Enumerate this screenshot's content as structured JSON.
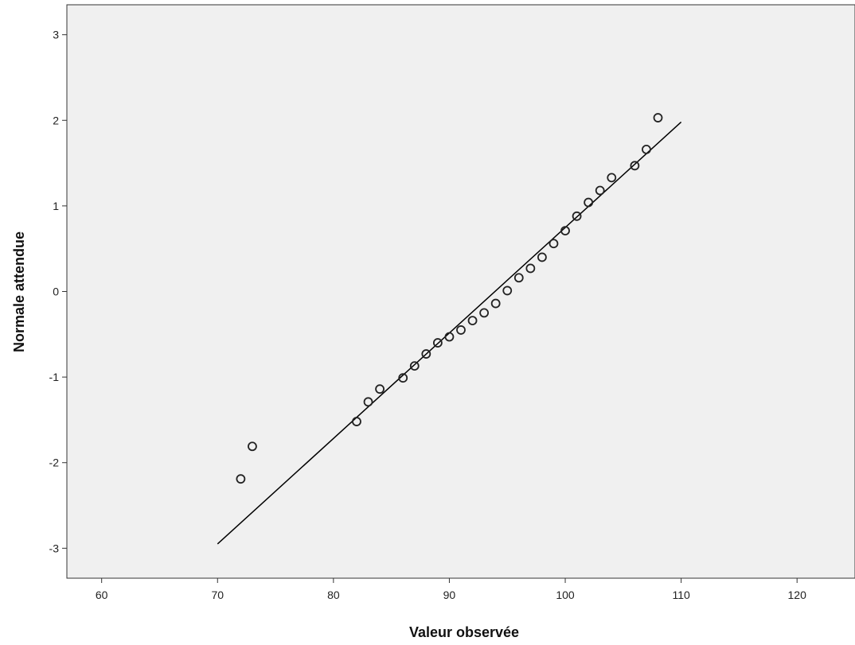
{
  "chart_data": {
    "type": "scatter",
    "xlabel": "Valeur observée",
    "ylabel": "Normale attendue",
    "xlim": [
      57,
      125
    ],
    "ylim": [
      -3.35,
      3.35
    ],
    "x_ticks": [
      60,
      70,
      80,
      90,
      100,
      110,
      120
    ],
    "y_ticks": [
      -3,
      -2,
      -1,
      0,
      1,
      2,
      3
    ],
    "grid": false,
    "colors": {
      "plot_background": "#f0f0f0",
      "marker": "#222222",
      "line": "#000000"
    },
    "points": [
      {
        "x": 72,
        "y": -2.19
      },
      {
        "x": 73,
        "y": -1.81
      },
      {
        "x": 82,
        "y": -1.52
      },
      {
        "x": 83,
        "y": -1.29
      },
      {
        "x": 84,
        "y": -1.14
      },
      {
        "x": 86,
        "y": -1.01
      },
      {
        "x": 87,
        "y": -0.87
      },
      {
        "x": 88,
        "y": -0.73
      },
      {
        "x": 89,
        "y": -0.6
      },
      {
        "x": 90,
        "y": -0.53
      },
      {
        "x": 91,
        "y": -0.45
      },
      {
        "x": 92,
        "y": -0.34
      },
      {
        "x": 93,
        "y": -0.25
      },
      {
        "x": 94,
        "y": -0.14
      },
      {
        "x": 95,
        "y": 0.01
      },
      {
        "x": 96,
        "y": 0.16
      },
      {
        "x": 97,
        "y": 0.27
      },
      {
        "x": 98,
        "y": 0.4
      },
      {
        "x": 99,
        "y": 0.56
      },
      {
        "x": 100,
        "y": 0.71
      },
      {
        "x": 101,
        "y": 0.88
      },
      {
        "x": 102,
        "y": 1.04
      },
      {
        "x": 103,
        "y": 1.18
      },
      {
        "x": 104,
        "y": 1.33
      },
      {
        "x": 106,
        "y": 1.47
      },
      {
        "x": 107,
        "y": 1.66
      },
      {
        "x": 108,
        "y": 2.03
      }
    ],
    "reference_line": {
      "x": [
        70,
        110
      ],
      "y": [
        -2.95,
        1.98
      ]
    }
  }
}
